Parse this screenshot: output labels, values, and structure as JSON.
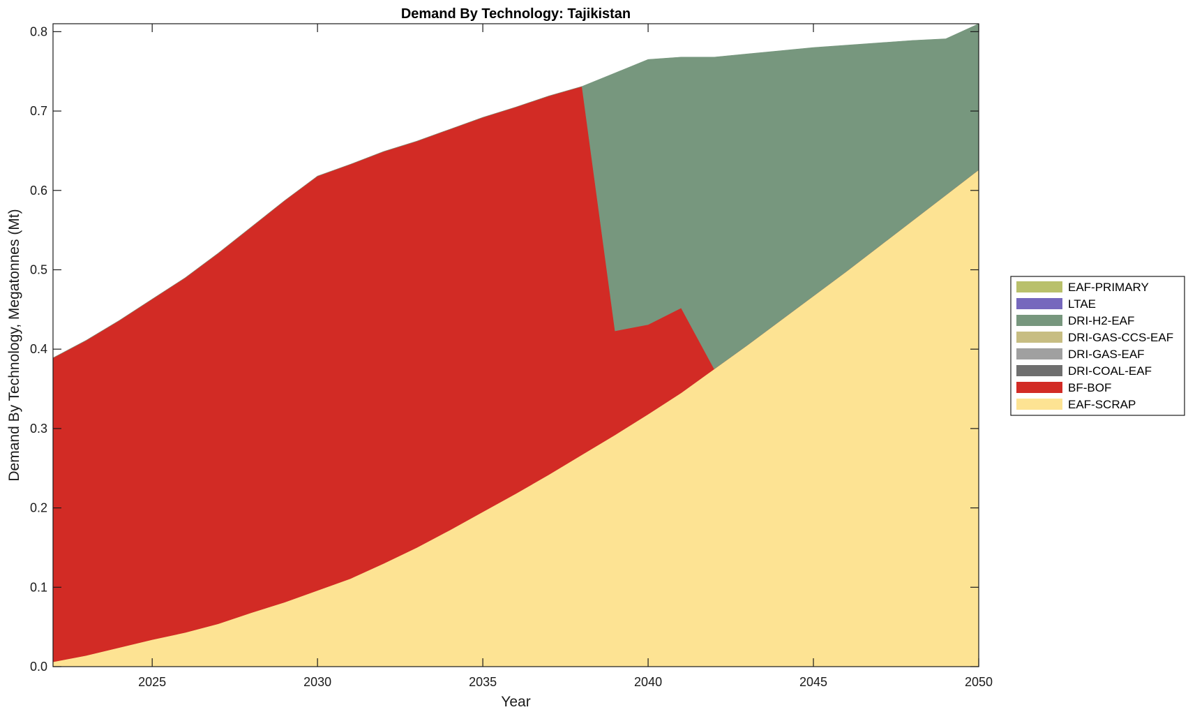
{
  "chart_data": {
    "type": "area",
    "stacked": true,
    "title": "Demand By Technology: Tajikistan",
    "xlabel": "Year",
    "ylabel": "Demand By Technology, Megatonnes (Mt)",
    "xlim": [
      2022,
      2050
    ],
    "ylim": [
      0,
      0.81
    ],
    "xticks": [
      "2025",
      "2030",
      "2035",
      "2040",
      "2045",
      "2050"
    ],
    "yticks": [
      "0.0",
      "0.1",
      "0.2",
      "0.3",
      "0.4",
      "0.5",
      "0.6",
      "0.7",
      "0.8"
    ],
    "grid": false,
    "legend_position": "right",
    "x": [
      2022,
      2023,
      2024,
      2025,
      2026,
      2027,
      2028,
      2029,
      2030,
      2031,
      2032,
      2033,
      2034,
      2035,
      2036,
      2037,
      2038,
      2039,
      2040,
      2041,
      2042,
      2043,
      2044,
      2045,
      2046,
      2047,
      2048,
      2049,
      2050
    ],
    "series": [
      {
        "name": "EAF-SCRAP",
        "color": "#fde393",
        "values": [
          0.006,
          0.014,
          0.024,
          0.034,
          0.043,
          0.054,
          0.068,
          0.081,
          0.096,
          0.111,
          0.13,
          0.15,
          0.172,
          0.195,
          0.218,
          0.242,
          0.267,
          0.292,
          0.318,
          0.345,
          0.375,
          0.405,
          0.436,
          0.467,
          0.498,
          0.53,
          0.562,
          0.594,
          0.626
        ]
      },
      {
        "name": "BF-BOF",
        "color": "#d22b25",
        "values": [
          0.383,
          0.397,
          0.412,
          0.429,
          0.447,
          0.467,
          0.486,
          0.506,
          0.522,
          0.522,
          0.519,
          0.512,
          0.505,
          0.497,
          0.487,
          0.477,
          0.464,
          0.131,
          0.113,
          0.107,
          0.0,
          0.0,
          0.0,
          0.0,
          0.0,
          0.0,
          0.0,
          0.0,
          0.0
        ]
      },
      {
        "name": "DRI-COAL-EAF",
        "color": "#6f6f6f",
        "values": [
          0,
          0,
          0,
          0,
          0,
          0,
          0,
          0,
          0,
          0,
          0,
          0,
          0,
          0,
          0,
          0,
          0,
          0,
          0,
          0,
          0,
          0,
          0,
          0,
          0,
          0,
          0,
          0,
          0
        ]
      },
      {
        "name": "DRI-GAS-EAF",
        "color": "#a0a0a0",
        "values": [
          0,
          0,
          0,
          0,
          0,
          0,
          0,
          0,
          0,
          0,
          0,
          0,
          0,
          0,
          0,
          0,
          0,
          0,
          0,
          0,
          0,
          0,
          0,
          0,
          0,
          0,
          0,
          0,
          0
        ]
      },
      {
        "name": "DRI-GAS-CCS-EAF",
        "color": "#c7bd82",
        "values": [
          0,
          0,
          0,
          0,
          0,
          0,
          0,
          0,
          0,
          0,
          0,
          0,
          0,
          0,
          0,
          0,
          0,
          0,
          0,
          0,
          0,
          0,
          0,
          0,
          0,
          0,
          0,
          0,
          0
        ]
      },
      {
        "name": "DRI-H2-EAF",
        "color": "#77977e",
        "values": [
          0,
          0,
          0,
          0,
          0,
          0,
          0,
          0,
          0,
          0,
          0,
          0,
          0,
          0,
          0,
          0,
          0,
          0.325,
          0.334,
          0.316,
          0.393,
          0.367,
          0.34,
          0.313,
          0.285,
          0.256,
          0.227,
          0.197,
          0.184
        ]
      },
      {
        "name": "LTAE",
        "color": "#7668bd",
        "values": [
          0,
          0,
          0,
          0,
          0,
          0,
          0,
          0,
          0,
          0,
          0,
          0,
          0,
          0,
          0,
          0,
          0,
          0,
          0,
          0,
          0,
          0,
          0,
          0,
          0,
          0,
          0,
          0,
          0
        ]
      },
      {
        "name": "EAF-PRIMARY",
        "color": "#b9c06b",
        "values": [
          0,
          0,
          0,
          0,
          0,
          0,
          0,
          0,
          0,
          0,
          0,
          0,
          0,
          0,
          0,
          0,
          0,
          0,
          0,
          0,
          0,
          0,
          0,
          0,
          0,
          0,
          0,
          0,
          0
        ]
      }
    ],
    "legend_order": [
      "EAF-PRIMARY",
      "LTAE",
      "DRI-H2-EAF",
      "DRI-GAS-CCS-EAF",
      "DRI-GAS-EAF",
      "DRI-COAL-EAF",
      "BF-BOF",
      "EAF-SCRAP"
    ]
  }
}
